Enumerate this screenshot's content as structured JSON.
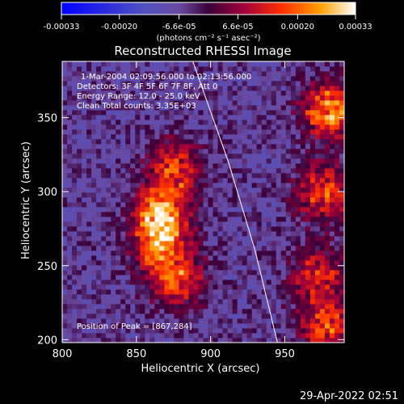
{
  "colorbar": {
    "tick_labels": [
      "-0.00033",
      "-0.00020",
      "-6.6e-05",
      "6.6e-05",
      "0.00020",
      "0.00033"
    ],
    "tick_values": [
      -0.00033,
      -0.0002,
      -6.6e-05,
      6.6e-05,
      0.0002,
      0.00033
    ],
    "range": [
      -0.00033,
      0.00033
    ],
    "unit_label": "(photons cm⁻² s⁻¹ asec⁻²)"
  },
  "chart_data": {
    "type": "heatmap",
    "title": "Reconstructed RHESSI Image",
    "xlabel": "Heliocentric X (arcsec)",
    "ylabel": "Heliocentric Y (arcsec)",
    "xlim": [
      800,
      990
    ],
    "ylim": [
      198,
      388
    ],
    "x_ticks": [
      800,
      850,
      900,
      950
    ],
    "y_ticks": [
      200,
      250,
      300,
      350
    ],
    "annotations": [
      "1-Mar-2004 02:09:56.000 to 02:13:56.000",
      "Detectors: 3F 4F 5F 6F 7F 8F, Att 0",
      "Energy Range: 12.0 - 25.0 keV",
      "Clean     Total counts: 3.35E+03"
    ],
    "peak_label": "Position of Peak = [867,284]",
    "peak": [
      867,
      284
    ],
    "sources": [
      {
        "x": 867,
        "y": 284,
        "peak": 0.00031
      },
      {
        "x": 875,
        "y": 316,
        "peak": 0.00022
      },
      {
        "x": 865,
        "y": 262,
        "peak": 0.0002
      },
      {
        "x": 878,
        "y": 240,
        "peak": 0.00021
      },
      {
        "x": 980,
        "y": 355,
        "peak": 0.0003
      },
      {
        "x": 976,
        "y": 300,
        "peak": 0.00024
      },
      {
        "x": 972,
        "y": 245,
        "peak": 0.0002
      },
      {
        "x": 978,
        "y": 210,
        "peak": 0.00022
      }
    ],
    "limb": [
      [
        888,
        388
      ],
      [
        912,
        320
      ],
      [
        930,
        260
      ],
      [
        945,
        198
      ]
    ],
    "grid": false
  },
  "footer": {
    "timestamp": "29-Apr-2022 02:51"
  }
}
